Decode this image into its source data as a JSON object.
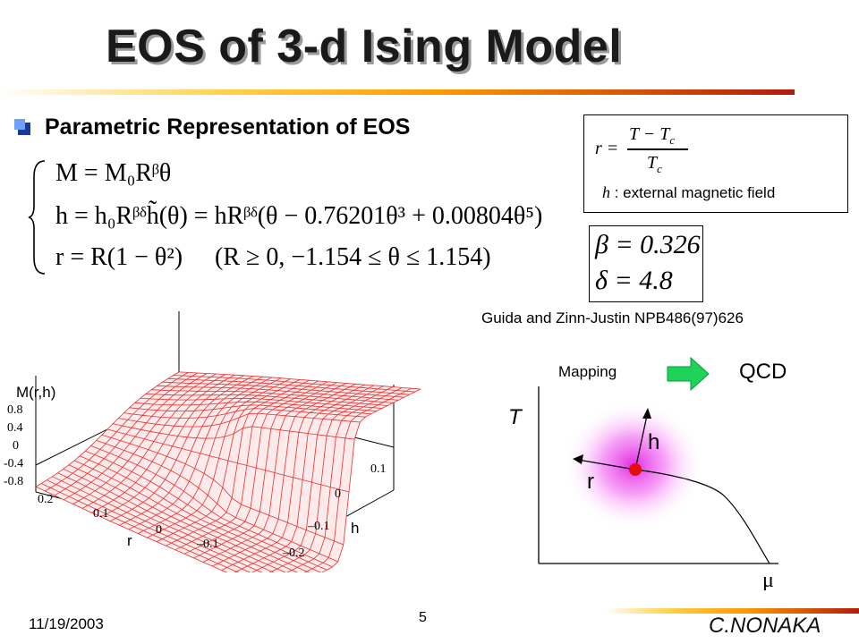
{
  "slide": {
    "title": "EOS of 3-d Ising Model",
    "subtitle": "Parametric Representation of EOS",
    "date": "11/19/2003",
    "page_number": "5",
    "author": "C.NONAKA"
  },
  "equations": {
    "line1": "M = M₀Rᵝθ",
    "line2": "h = h₀Rᵝᵟh̃(θ) = hRᵝᵟ(θ − 0.76201θ³ + 0.00804θ⁵)",
    "line3": "r = R(1 − θ²)",
    "condition": "(R ≥ 0,  −1.154 ≤ θ ≤ 1.154)"
  },
  "definitions": {
    "r_lhs": "r =",
    "r_num": "T − T",
    "r_num_sub": "c",
    "r_den": "T",
    "r_den_sub": "c",
    "h_symbol": "h",
    "h_desc": ": external magnetic field"
  },
  "exponents": {
    "beta": "β = 0.326",
    "delta": "δ = 4.8"
  },
  "reference": "Guida and Zinn-Justin NPB486(97)626",
  "surface_plot": {
    "zlabel": "M(r,h)",
    "z_ticks": [
      "0.8",
      "0.4",
      "0",
      "-0.4",
      "-0.8"
    ],
    "r_label": "r",
    "r_ticks": [
      "0.2",
      "0.1",
      "0",
      "–0.1"
    ],
    "h_label": "h",
    "h_ticks": [
      "0.1",
      "0",
      "–0.1",
      "–0.2"
    ],
    "mesh_color": "#e83030"
  },
  "phase_diagram": {
    "mapping_label": "Mapping",
    "qcd_label": "QCD",
    "t_axis_label": "T",
    "mu_axis_label": "μ",
    "h_arrow_label": "h",
    "r_arrow_label": "r",
    "arrow_color": "#1ed25a",
    "critical_point_color": "#e01010",
    "glow_color": "#f040f0"
  }
}
